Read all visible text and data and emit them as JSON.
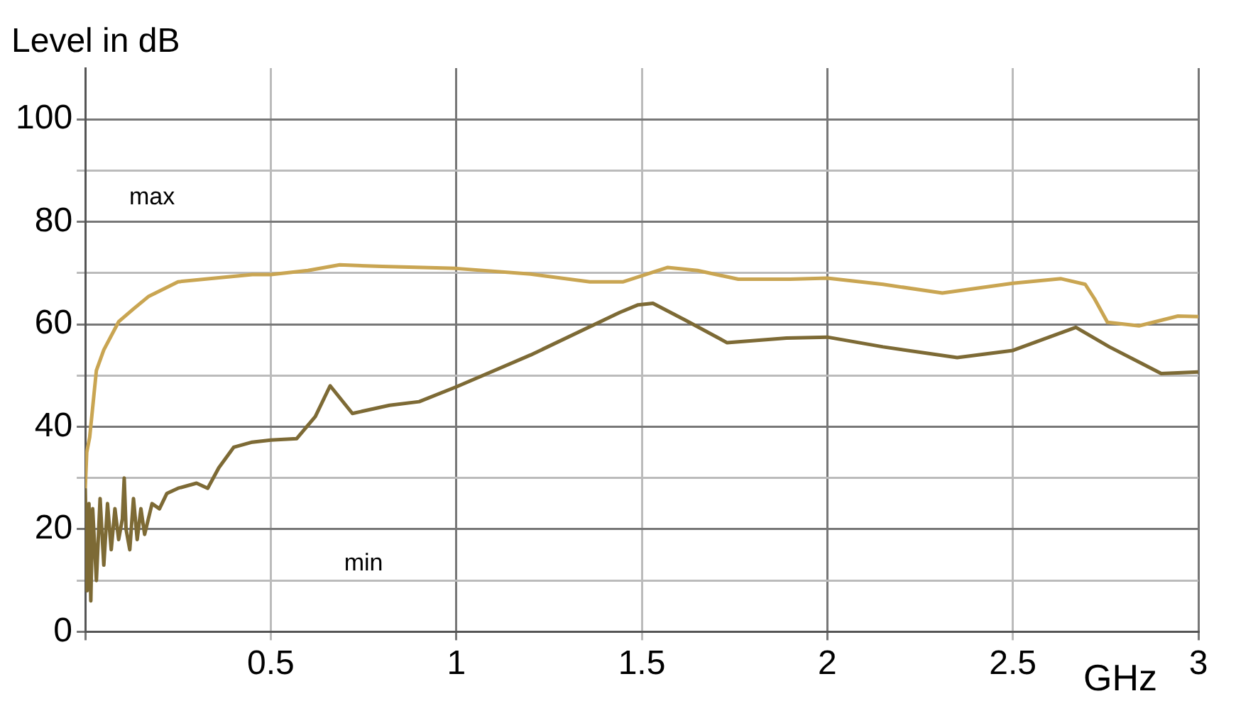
{
  "chart_data": {
    "type": "line",
    "xlabel": "GHz",
    "ylabel": "Level in dB",
    "xlim": [
      0,
      3
    ],
    "ylim": [
      0,
      110
    ],
    "xticks": [
      {
        "value": 0,
        "label": null
      },
      0.5,
      1,
      1.5,
      2,
      2.5,
      3
    ],
    "yticks": [
      0,
      {
        "value": 10,
        "label": null
      },
      20,
      {
        "value": 30,
        "label": null
      },
      40,
      {
        "value": 50,
        "label": null
      },
      60,
      {
        "value": 70,
        "label": null
      },
      80,
      {
        "value": 90,
        "label": null
      },
      100
    ],
    "grid": true,
    "legend": false,
    "marker": "none",
    "line_style": "solid",
    "annotations": [
      "max",
      "min"
    ],
    "series": [
      {
        "color": "#c9a552",
        "x": [
          0,
          0.004,
          0.012,
          0.03,
          0.05,
          0.09,
          0.13,
          0.17,
          0.25,
          0.35,
          0.45,
          0.5,
          0.6,
          0.686,
          0.8,
          1.0,
          1.2,
          1.36,
          1.45,
          1.57,
          1.65,
          1.76,
          1.9,
          2.0,
          2.15,
          2.31,
          2.5,
          2.63,
          2.695,
          2.72,
          2.755,
          2.84,
          2.945,
          3.0
        ],
        "values": [
          28,
          35,
          38,
          51,
          55,
          60.5,
          63,
          65.4,
          68.3,
          69,
          69.7,
          69.7,
          70.5,
          71.6,
          71.3,
          70.9,
          69.8,
          68.3,
          68.3,
          71.1,
          70.5,
          68.8,
          68.8,
          69,
          67.8,
          66.1,
          68,
          68.9,
          67.8,
          65,
          60.4,
          59.7,
          61.6,
          61.5
        ]
      },
      {
        "color": "#7d6a35",
        "x": [
          0,
          0.005,
          0.01,
          0.015,
          0.02,
          0.03,
          0.04,
          0.05,
          0.06,
          0.07,
          0.08,
          0.09,
          0.1,
          0.105,
          0.11,
          0.12,
          0.13,
          0.14,
          0.15,
          0.16,
          0.18,
          0.2,
          0.22,
          0.25,
          0.3,
          0.33,
          0.36,
          0.4,
          0.45,
          0.5,
          0.57,
          0.62,
          0.66,
          0.72,
          0.82,
          0.9,
          1.0,
          1.2,
          1.44,
          1.49,
          1.53,
          1.62,
          1.73,
          1.89,
          2.0,
          2.15,
          2.35,
          2.5,
          2.67,
          2.76,
          2.9,
          3.0
        ],
        "values": [
          28,
          8,
          25,
          6,
          24,
          10,
          26,
          13,
          25,
          16,
          24,
          18,
          22,
          30,
          20,
          16,
          26,
          18,
          24,
          19,
          25,
          24,
          27,
          28,
          29,
          28,
          32,
          36,
          37,
          37.4,
          37.7,
          42,
          48,
          42.6,
          44.2,
          44.9,
          47.8,
          54,
          62.3,
          63.8,
          64.1,
          60.7,
          56.4,
          57.3,
          57.5,
          55.6,
          53.5,
          54.9,
          59.4,
          55.6,
          50.4,
          50.7
        ]
      }
    ]
  }
}
